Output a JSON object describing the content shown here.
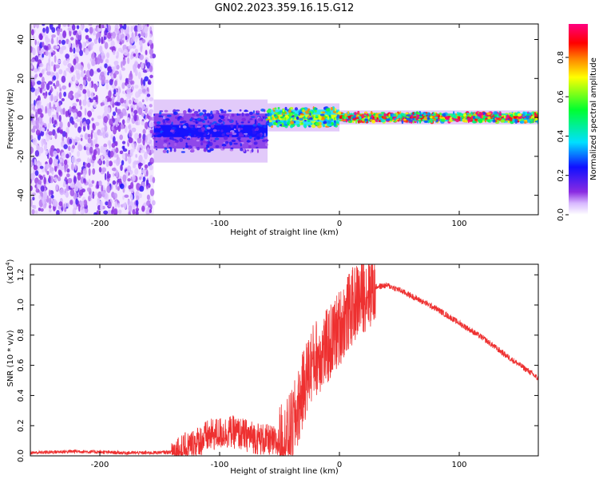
{
  "figure_title": "GN02.2023.359.16.15.G12",
  "chart_data": [
    {
      "type": "heatmap",
      "title": "GN02.2023.359.16.15.G12",
      "xlabel": "Height of straight line (km)",
      "ylabel": "Frequency (Hz)",
      "xlim": [
        -258,
        166
      ],
      "ylim": [
        -50,
        48
      ],
      "x_ticks": [
        -200,
        -100,
        0,
        100
      ],
      "y_ticks": [
        -40,
        -20,
        0,
        20,
        40
      ],
      "x_tick_labels": [
        "-200",
        "-100",
        "0",
        "100"
      ],
      "y_tick_labels": [
        "-40",
        "-20",
        "0",
        "20",
        "40"
      ],
      "colorbar": {
        "label": "Normalized spectral amplitude",
        "range": [
          0.0,
          0.97
        ],
        "ticks": [
          0.0,
          0.2,
          0.4,
          0.6,
          0.8
        ],
        "tick_labels": [
          "0.0",
          "0.2",
          "0.4",
          "0.6",
          "0.8"
        ],
        "colormap": "rainbow (purple → blue → cyan → green → yellow → orange → red → magenta)"
      },
      "features": [
        {
          "description": "scattered noise",
          "x_range": [
            -258,
            -155
          ],
          "freq_range": [
            -50,
            48
          ],
          "amplitude": 0.1
        },
        {
          "description": "band",
          "x_range": [
            -155,
            -60
          ],
          "freq_center": -7,
          "freq_halfwidth": 9,
          "amplitude": 0.25
        },
        {
          "description": "converging",
          "x_range": [
            -60,
            0
          ],
          "freq_center": 0,
          "freq_halfwidth": 4,
          "amplitude": 0.7
        },
        {
          "description": "stable tone",
          "x_range": [
            0,
            166
          ],
          "freq_center": 0,
          "freq_halfwidth": 2,
          "amplitude": 0.9
        }
      ]
    },
    {
      "type": "line",
      "title": "",
      "xlabel": "Height of straight line (km)",
      "ylabel": "SNR (10 * v/v)",
      "y_exponent_label": "(x10",
      "y_exponent_power": "4",
      "y_exponent_close": ")",
      "xlim": [
        -258,
        166
      ],
      "ylim": [
        0,
        1.27
      ],
      "x_ticks": [
        -200,
        -100,
        0,
        100
      ],
      "y_ticks": [
        0.0,
        0.2,
        0.4,
        0.6,
        0.8,
        1.0,
        1.2
      ],
      "x_tick_labels": [
        "-200",
        "-100",
        "0",
        "100"
      ],
      "y_tick_labels": [
        "0.0",
        "0.2",
        "0.4",
        "0.6",
        "0.8",
        "1.0",
        "1.2"
      ],
      "color": "#ee3030",
      "series": [
        {
          "name": "SNR",
          "x": [
            -258,
            -240,
            -220,
            -200,
            -180,
            -160,
            -140,
            -130,
            -120,
            -110,
            -100,
            -90,
            -80,
            -70,
            -60,
            -50,
            -45,
            -40,
            -35,
            -30,
            -25,
            -20,
            -15,
            -10,
            -5,
            0,
            5,
            10,
            15,
            20,
            25,
            30,
            40,
            50,
            60,
            80,
            100,
            120,
            140,
            160,
            166
          ],
          "y": [
            0.02,
            0.025,
            0.03,
            0.025,
            0.02,
            0.02,
            0.025,
            0.04,
            0.08,
            0.13,
            0.15,
            0.16,
            0.14,
            0.12,
            0.1,
            0.08,
            0.1,
            0.18,
            0.3,
            0.45,
            0.58,
            0.65,
            0.68,
            0.72,
            0.78,
            0.85,
            0.92,
            0.98,
            1.03,
            1.07,
            1.1,
            1.12,
            1.13,
            1.1,
            1.06,
            0.98,
            0.88,
            0.78,
            0.66,
            0.55,
            0.51
          ]
        }
      ]
    }
  ]
}
